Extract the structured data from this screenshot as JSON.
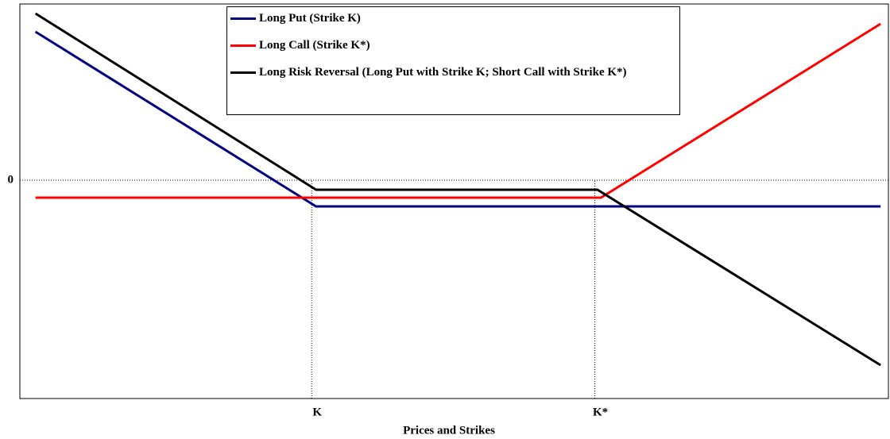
{
  "chart_data": {
    "type": "line",
    "x_label": "Prices and Strikes",
    "xlim": [
      0,
      100
    ],
    "xticks": [
      {
        "value": 33.6,
        "label": "K"
      },
      {
        "value": 66.2,
        "label": "K*"
      }
    ],
    "ylim": [
      -27.5,
      22.2
    ],
    "yticks": [
      0
    ],
    "legend": "top-center",
    "series": [
      {
        "name": "Long Put (Strike K)",
        "color": "#000080",
        "x": [
          1.8,
          34.1,
          99.1
        ],
        "values": [
          18.7,
          -3.3,
          -3.3
        ]
      },
      {
        "name": "Long Call (Strike K*)",
        "color": "#ff0000",
        "x": [
          1.8,
          66.9,
          99.1
        ],
        "values": [
          -2.2,
          -2.2,
          19.7
        ]
      },
      {
        "name": "Long Risk Reversal (Long Put with Strike K; Short Call with Strike K*)",
        "color": "#000000",
        "x": [
          1.8,
          34.1,
          66.5,
          99.1
        ],
        "values": [
          21.0,
          -1.2,
          -1.2,
          -23.3
        ]
      }
    ]
  }
}
